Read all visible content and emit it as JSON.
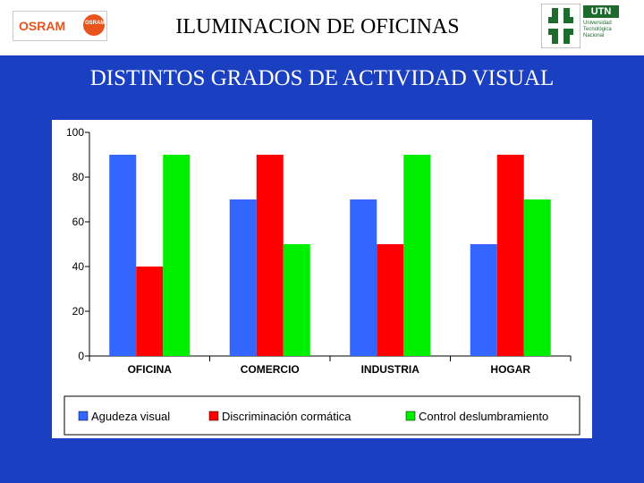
{
  "header": {
    "title": "ILUMINACION DE OFICINAS",
    "osram_logo_text": "OSRAM",
    "osram_bulb_text": "OSRAM",
    "utn_logo_text": "UTN",
    "utn_subtext": "Universidad\nTecnológica\nNacional"
  },
  "subtitle": "DISTINTOS GRADOS DE ACTIVIDAD VISUAL",
  "colors": {
    "background": "#1a3fc0",
    "osram_orange": "#e8541c",
    "utn_green": "#1e6b2e"
  },
  "chart_data": {
    "type": "bar",
    "categories": [
      "OFICINA",
      "COMERCIO",
      "INDUSTRIA",
      "HOGAR"
    ],
    "series": [
      {
        "name": "Agudeza visual",
        "values": [
          90,
          70,
          70,
          50
        ],
        "color": "#3366ff"
      },
      {
        "name": "Discriminación cormática",
        "values": [
          40,
          90,
          50,
          90
        ],
        "color": "#ff0000"
      },
      {
        "name": "Control deslumbramiento",
        "values": [
          90,
          50,
          90,
          70
        ],
        "color": "#00ee00"
      }
    ],
    "yticks": [
      0,
      20,
      40,
      60,
      80,
      100
    ],
    "ylim": [
      0,
      100
    ],
    "grid": false,
    "legend_position": "bottom"
  }
}
